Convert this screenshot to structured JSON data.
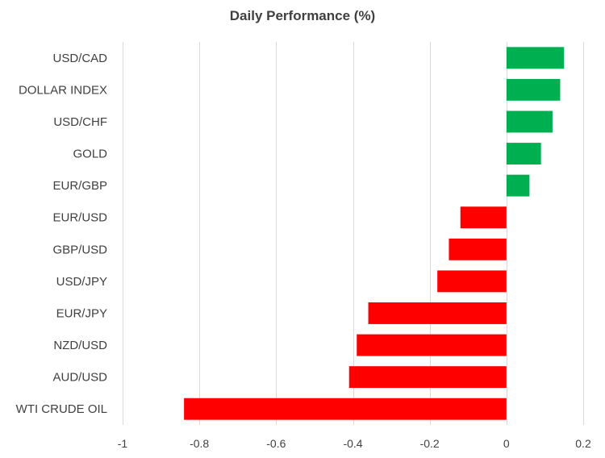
{
  "chart_data": {
    "type": "bar",
    "orientation": "horizontal",
    "title": "Daily Performance (%)",
    "xlabel": "",
    "ylabel": "",
    "grid": true,
    "legend": "none",
    "xlim": [
      -1,
      0.2
    ],
    "x_ticks": [
      -1,
      -0.8,
      -0.6,
      -0.4,
      -0.2,
      0,
      0.2
    ],
    "x_tick_labels": [
      "-1",
      "-0.8",
      "-0.6",
      "-0.4",
      "-0.2",
      "0",
      "0.2"
    ],
    "categories": [
      "USD/CAD",
      "DOLLAR INDEX",
      "USD/CHF",
      "GOLD",
      "EUR/GBP",
      "EUR/USD",
      "GBP/USD",
      "USD/JPY",
      "EUR/JPY",
      "NZD/USD",
      "AUD/USD",
      "WTI CRUDE OIL"
    ],
    "values": [
      0.15,
      0.14,
      0.12,
      0.09,
      0.06,
      -0.12,
      -0.15,
      -0.18,
      -0.36,
      -0.39,
      -0.41,
      -0.84
    ],
    "colors": {
      "positive": "#00b050",
      "negative": "#ff0000",
      "grid": "#d9d9d9",
      "text": "#404040"
    }
  }
}
